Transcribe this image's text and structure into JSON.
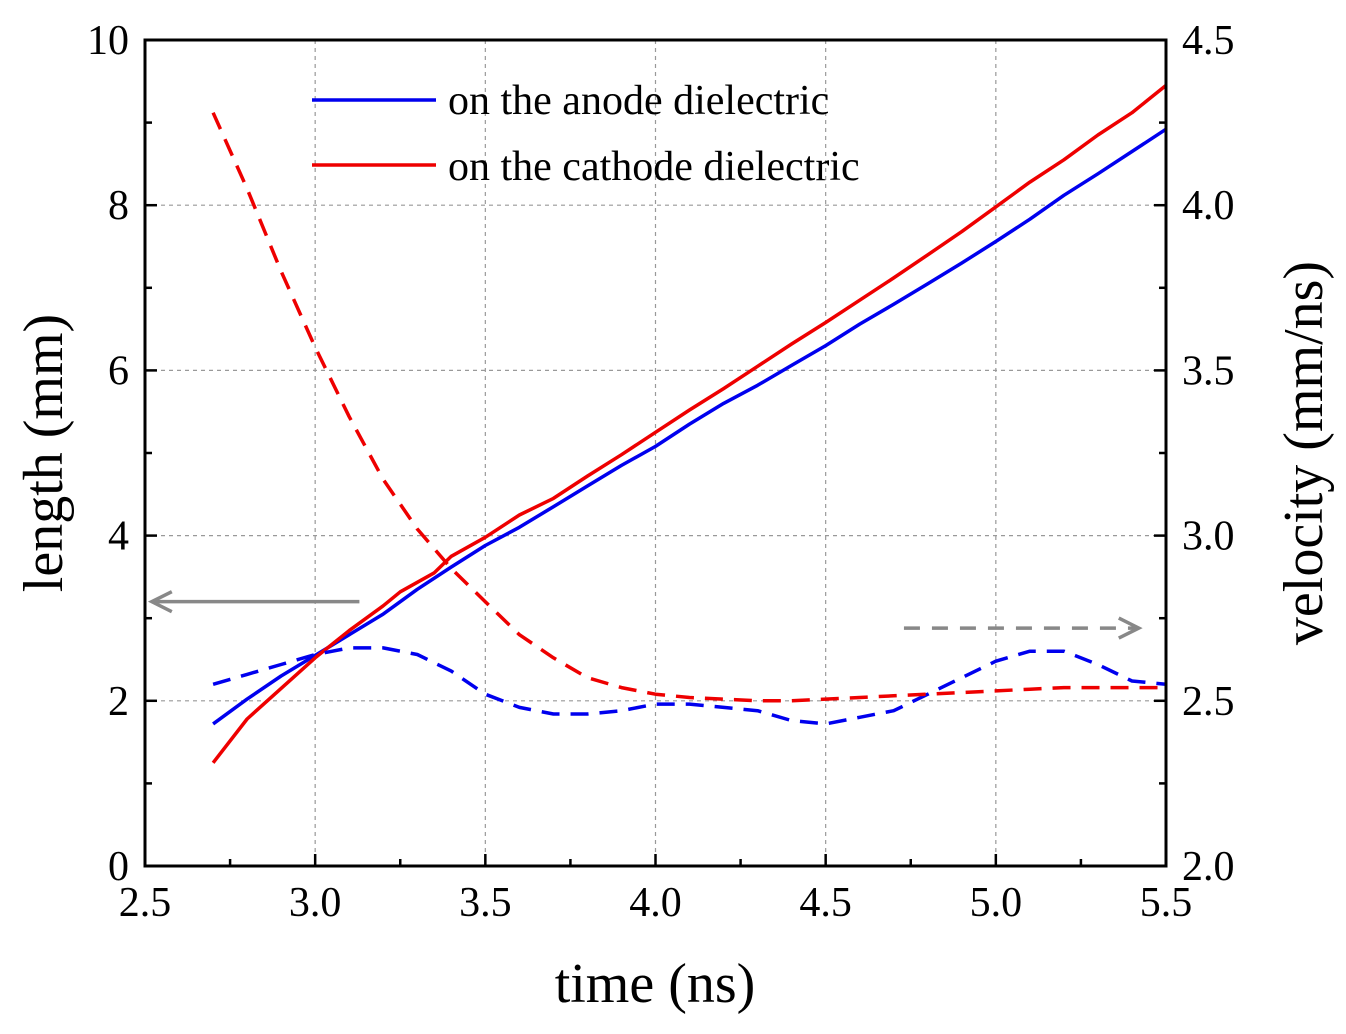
{
  "chart_data": {
    "type": "line",
    "title": "",
    "xlabel": "time (ns)",
    "ylabel_left": "length (mm)",
    "ylabel_right": "velocity (mm/ns)",
    "xlim": [
      2.5,
      5.5
    ],
    "ylim_left": [
      0,
      10
    ],
    "ylim_right": [
      2.0,
      4.5
    ],
    "x_ticks": [
      "2.5",
      "3.0",
      "3.5",
      "4.0",
      "4.5",
      "5.0",
      "5.5"
    ],
    "y_left_ticks": [
      "0",
      "2",
      "4",
      "6",
      "8",
      "10"
    ],
    "y_right_ticks": [
      "2.0",
      "2.5",
      "3.0",
      "3.5",
      "4.0",
      "4.5"
    ],
    "grid": true,
    "legend_position": "top-center",
    "legend": [
      {
        "label": "on the anode dielectric",
        "color": "#0000ee"
      },
      {
        "label": "on the cathode dielectric",
        "color": "#ee0000"
      }
    ],
    "series": [
      {
        "name": "length on the anode dielectric",
        "axis": "left",
        "style": "solid",
        "color": "#0000ee",
        "points": [
          [
            2.7,
            1.72
          ],
          [
            2.8,
            2.02
          ],
          [
            2.9,
            2.3
          ],
          [
            3.0,
            2.55
          ],
          [
            3.1,
            2.8
          ],
          [
            3.2,
            3.05
          ],
          [
            3.3,
            3.35
          ],
          [
            3.4,
            3.62
          ],
          [
            3.5,
            3.88
          ],
          [
            3.6,
            4.1
          ],
          [
            3.7,
            4.35
          ],
          [
            3.8,
            4.6
          ],
          [
            3.9,
            4.85
          ],
          [
            4.0,
            5.08
          ],
          [
            4.1,
            5.35
          ],
          [
            4.2,
            5.6
          ],
          [
            4.3,
            5.82
          ],
          [
            4.4,
            6.06
          ],
          [
            4.5,
            6.3
          ],
          [
            4.6,
            6.56
          ],
          [
            4.7,
            6.8
          ],
          [
            4.8,
            7.05
          ],
          [
            4.9,
            7.3
          ],
          [
            5.0,
            7.56
          ],
          [
            5.1,
            7.83
          ],
          [
            5.2,
            8.12
          ],
          [
            5.3,
            8.38
          ],
          [
            5.4,
            8.65
          ],
          [
            5.5,
            8.92
          ]
        ]
      },
      {
        "name": "length on the cathode dielectric",
        "axis": "left",
        "style": "solid",
        "color": "#ee0000",
        "points": [
          [
            2.7,
            1.25
          ],
          [
            2.8,
            1.78
          ],
          [
            2.9,
            2.15
          ],
          [
            3.0,
            2.52
          ],
          [
            3.1,
            2.85
          ],
          [
            3.2,
            3.15
          ],
          [
            3.25,
            3.32
          ],
          [
            3.35,
            3.55
          ],
          [
            3.4,
            3.75
          ],
          [
            3.5,
            3.98
          ],
          [
            3.6,
            4.25
          ],
          [
            3.7,
            4.45
          ],
          [
            3.8,
            4.72
          ],
          [
            3.9,
            4.98
          ],
          [
            4.0,
            5.25
          ],
          [
            4.1,
            5.52
          ],
          [
            4.2,
            5.78
          ],
          [
            4.3,
            6.05
          ],
          [
            4.4,
            6.32
          ],
          [
            4.5,
            6.58
          ],
          [
            4.6,
            6.85
          ],
          [
            4.7,
            7.12
          ],
          [
            4.8,
            7.4
          ],
          [
            4.9,
            7.68
          ],
          [
            5.0,
            7.98
          ],
          [
            5.1,
            8.28
          ],
          [
            5.2,
            8.55
          ],
          [
            5.3,
            8.85
          ],
          [
            5.4,
            9.12
          ],
          [
            5.5,
            9.45
          ]
        ]
      },
      {
        "name": "velocity on the anode dielectric",
        "axis": "right",
        "style": "dashed",
        "color": "#0000ee",
        "points": [
          [
            2.7,
            2.55
          ],
          [
            2.8,
            2.58
          ],
          [
            2.9,
            2.61
          ],
          [
            3.0,
            2.64
          ],
          [
            3.1,
            2.66
          ],
          [
            3.2,
            2.66
          ],
          [
            3.3,
            2.64
          ],
          [
            3.4,
            2.59
          ],
          [
            3.5,
            2.52
          ],
          [
            3.6,
            2.48
          ],
          [
            3.7,
            2.46
          ],
          [
            3.8,
            2.46
          ],
          [
            3.9,
            2.47
          ],
          [
            4.0,
            2.49
          ],
          [
            4.1,
            2.49
          ],
          [
            4.2,
            2.48
          ],
          [
            4.3,
            2.47
          ],
          [
            4.4,
            2.44
          ],
          [
            4.5,
            2.43
          ],
          [
            4.6,
            2.45
          ],
          [
            4.7,
            2.47
          ],
          [
            4.8,
            2.52
          ],
          [
            4.9,
            2.57
          ],
          [
            5.0,
            2.62
          ],
          [
            5.1,
            2.65
          ],
          [
            5.2,
            2.65
          ],
          [
            5.3,
            2.61
          ],
          [
            5.4,
            2.56
          ],
          [
            5.5,
            2.55
          ]
        ]
      },
      {
        "name": "velocity on the cathode dielectric",
        "axis": "right",
        "style": "dashed",
        "color": "#ee0000",
        "points": [
          [
            2.7,
            4.28
          ],
          [
            2.8,
            4.05
          ],
          [
            2.9,
            3.8
          ],
          [
            3.0,
            3.57
          ],
          [
            3.1,
            3.36
          ],
          [
            3.2,
            3.17
          ],
          [
            3.3,
            3.02
          ],
          [
            3.4,
            2.9
          ],
          [
            3.5,
            2.8
          ],
          [
            3.6,
            2.7
          ],
          [
            3.7,
            2.63
          ],
          [
            3.8,
            2.57
          ],
          [
            3.9,
            2.54
          ],
          [
            4.0,
            2.52
          ],
          [
            4.1,
            2.51
          ],
          [
            4.2,
            2.505
          ],
          [
            4.3,
            2.5
          ],
          [
            4.4,
            2.5
          ],
          [
            4.5,
            2.505
          ],
          [
            4.6,
            2.51
          ],
          [
            4.7,
            2.515
          ],
          [
            4.8,
            2.52
          ],
          [
            4.9,
            2.525
          ],
          [
            5.0,
            2.53
          ],
          [
            5.1,
            2.535
          ],
          [
            5.2,
            2.54
          ],
          [
            5.3,
            2.54
          ],
          [
            5.4,
            2.54
          ],
          [
            5.5,
            2.54
          ]
        ]
      }
    ],
    "annotations": [
      {
        "type": "arrow",
        "direction": "left",
        "style": "solid",
        "color": "#888888",
        "meaning": "solid curves read on left axis",
        "x_from": 3.13,
        "x_to": 2.52,
        "y_left": 3.2
      },
      {
        "type": "arrow",
        "direction": "right",
        "style": "dashed",
        "color": "#888888",
        "meaning": "dashed curves read on right axis",
        "x_from": 4.73,
        "x_to": 5.42,
        "y_right": 2.72
      }
    ]
  }
}
